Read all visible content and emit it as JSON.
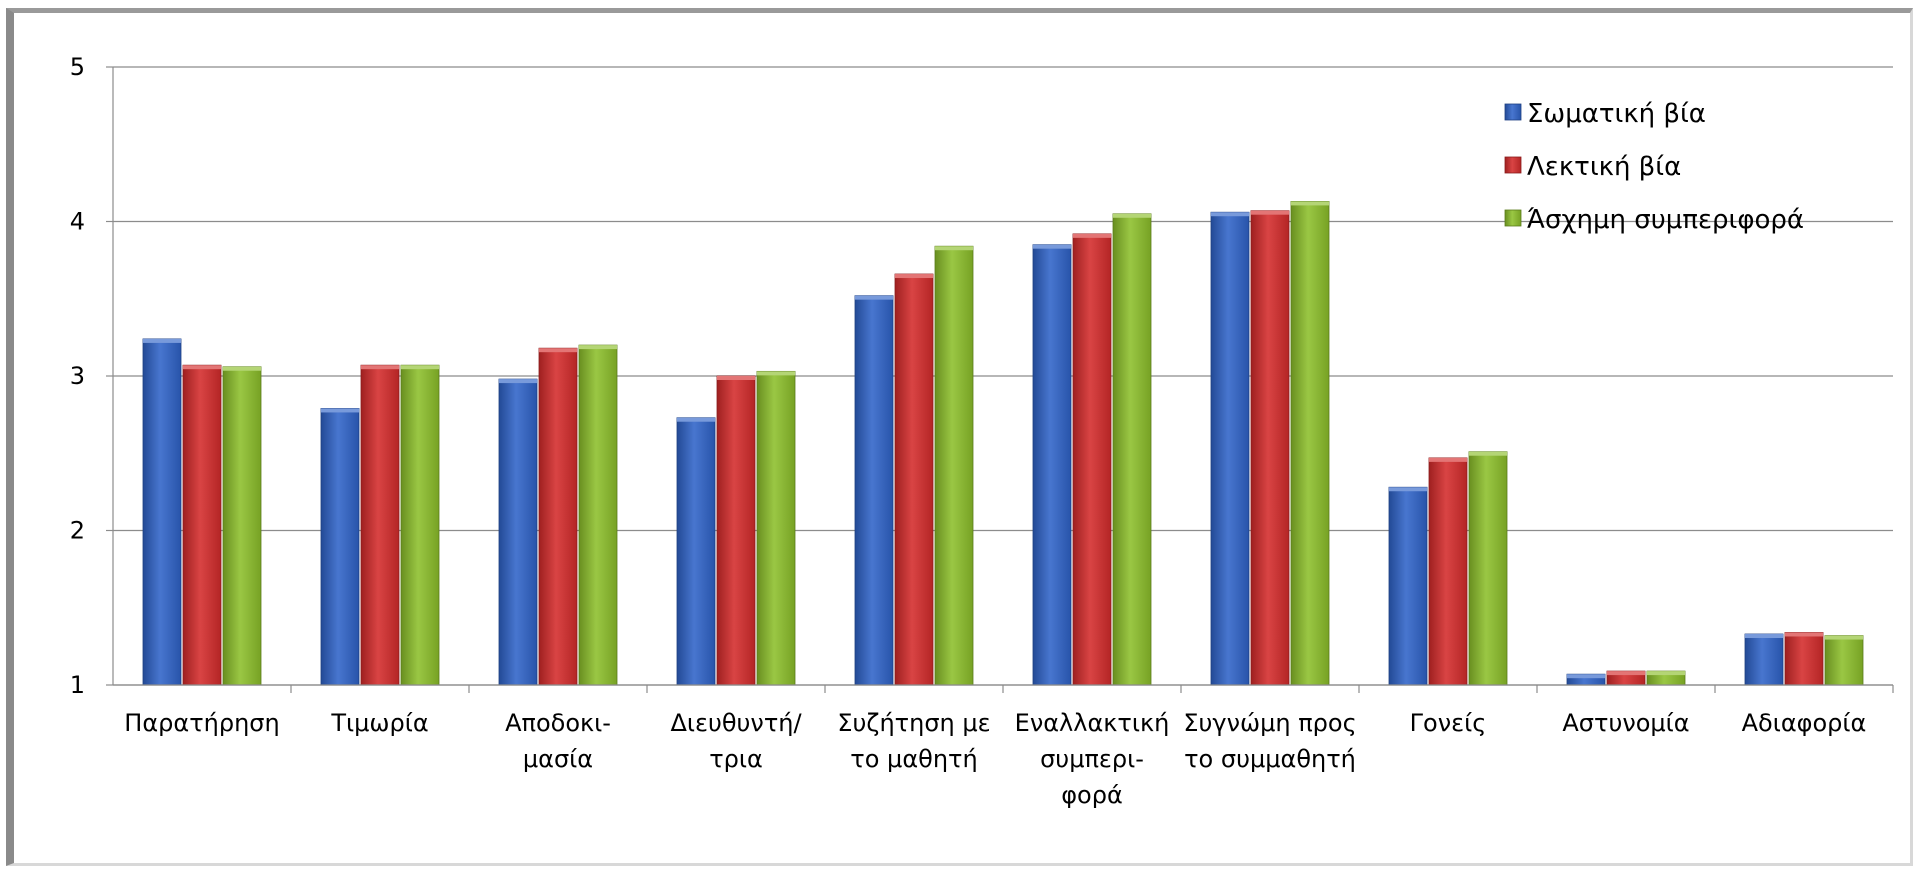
{
  "chart_data": {
    "type": "bar",
    "title": "",
    "xlabel": "",
    "ylabel": "",
    "ylim": [
      1,
      5
    ],
    "yticks": [
      "1",
      "2",
      "3",
      "4",
      "5"
    ],
    "grid": true,
    "legend_position": "top-right",
    "categories": [
      [
        "Παρατήρηση"
      ],
      [
        "Τιμωρία"
      ],
      [
        "Αποδοκι-",
        "μασία"
      ],
      [
        "Διευθυντή/",
        "τρια"
      ],
      [
        "Συζήτηση με",
        "το μαθητή"
      ],
      [
        "Εναλλακτική",
        "συμπερι-",
        "φορά"
      ],
      [
        "Συγνώμη προς",
        "το συμμαθητή"
      ],
      [
        "Γονείς"
      ],
      [
        "Αστυνομία"
      ],
      [
        "Αδιαφορία"
      ]
    ],
    "series": [
      {
        "name": "Σωματική βία",
        "color": "#2f63c8",
        "values": [
          3.24,
          2.79,
          2.98,
          2.73,
          3.52,
          3.85,
          4.06,
          2.28,
          1.07,
          1.33
        ]
      },
      {
        "name": "Λεκτική βία",
        "color": "#d42b2b",
        "values": [
          3.07,
          3.07,
          3.18,
          3.0,
          3.66,
          3.92,
          4.07,
          2.47,
          1.09,
          1.34
        ]
      },
      {
        "name": "Άσχημη συμπεριφορά",
        "color": "#8cbf2a",
        "values": [
          3.06,
          3.07,
          3.2,
          3.03,
          3.84,
          4.05,
          4.13,
          2.51,
          1.09,
          1.32
        ]
      }
    ]
  }
}
